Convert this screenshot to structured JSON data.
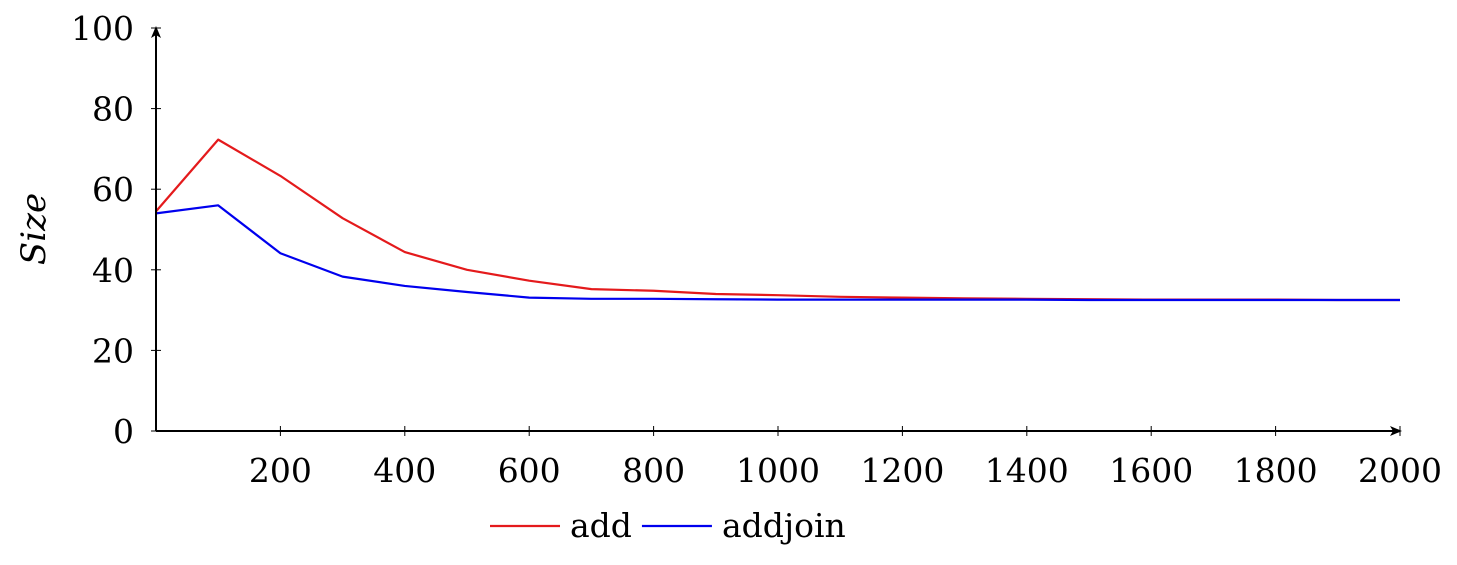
{
  "chart_data": {
    "type": "line",
    "title": "",
    "xlabel": "",
    "ylabel": "Size",
    "xlim": [
      0,
      2000
    ],
    "ylim": [
      0,
      100
    ],
    "x_ticks": [
      200,
      400,
      600,
      800,
      1000,
      1200,
      1400,
      1600,
      1800,
      2000
    ],
    "y_ticks": [
      0,
      20,
      40,
      60,
      80,
      100
    ],
    "grid": false,
    "legend_position": "bottom-center",
    "x": [
      0,
      100,
      200,
      300,
      400,
      500,
      600,
      700,
      800,
      900,
      1000,
      1100,
      1200,
      1300,
      1400,
      1500,
      1600,
      1700,
      1800,
      1900,
      2000
    ],
    "series": [
      {
        "name": "add",
        "color": "#e41a1c",
        "values": [
          54.5,
          72.3,
          63.3,
          52.8,
          44.4,
          40.0,
          37.3,
          35.2,
          34.8,
          34.0,
          33.7,
          33.3,
          33.1,
          32.9,
          32.8,
          32.7,
          32.6,
          32.6,
          32.6,
          32.5,
          32.5
        ]
      },
      {
        "name": "addjoin",
        "color": "#0000ee",
        "values": [
          54.0,
          56.0,
          44.1,
          38.3,
          36.0,
          34.5,
          33.1,
          32.8,
          32.8,
          32.7,
          32.6,
          32.6,
          32.6,
          32.6,
          32.6,
          32.5,
          32.5,
          32.5,
          32.5,
          32.5,
          32.5
        ]
      }
    ]
  }
}
